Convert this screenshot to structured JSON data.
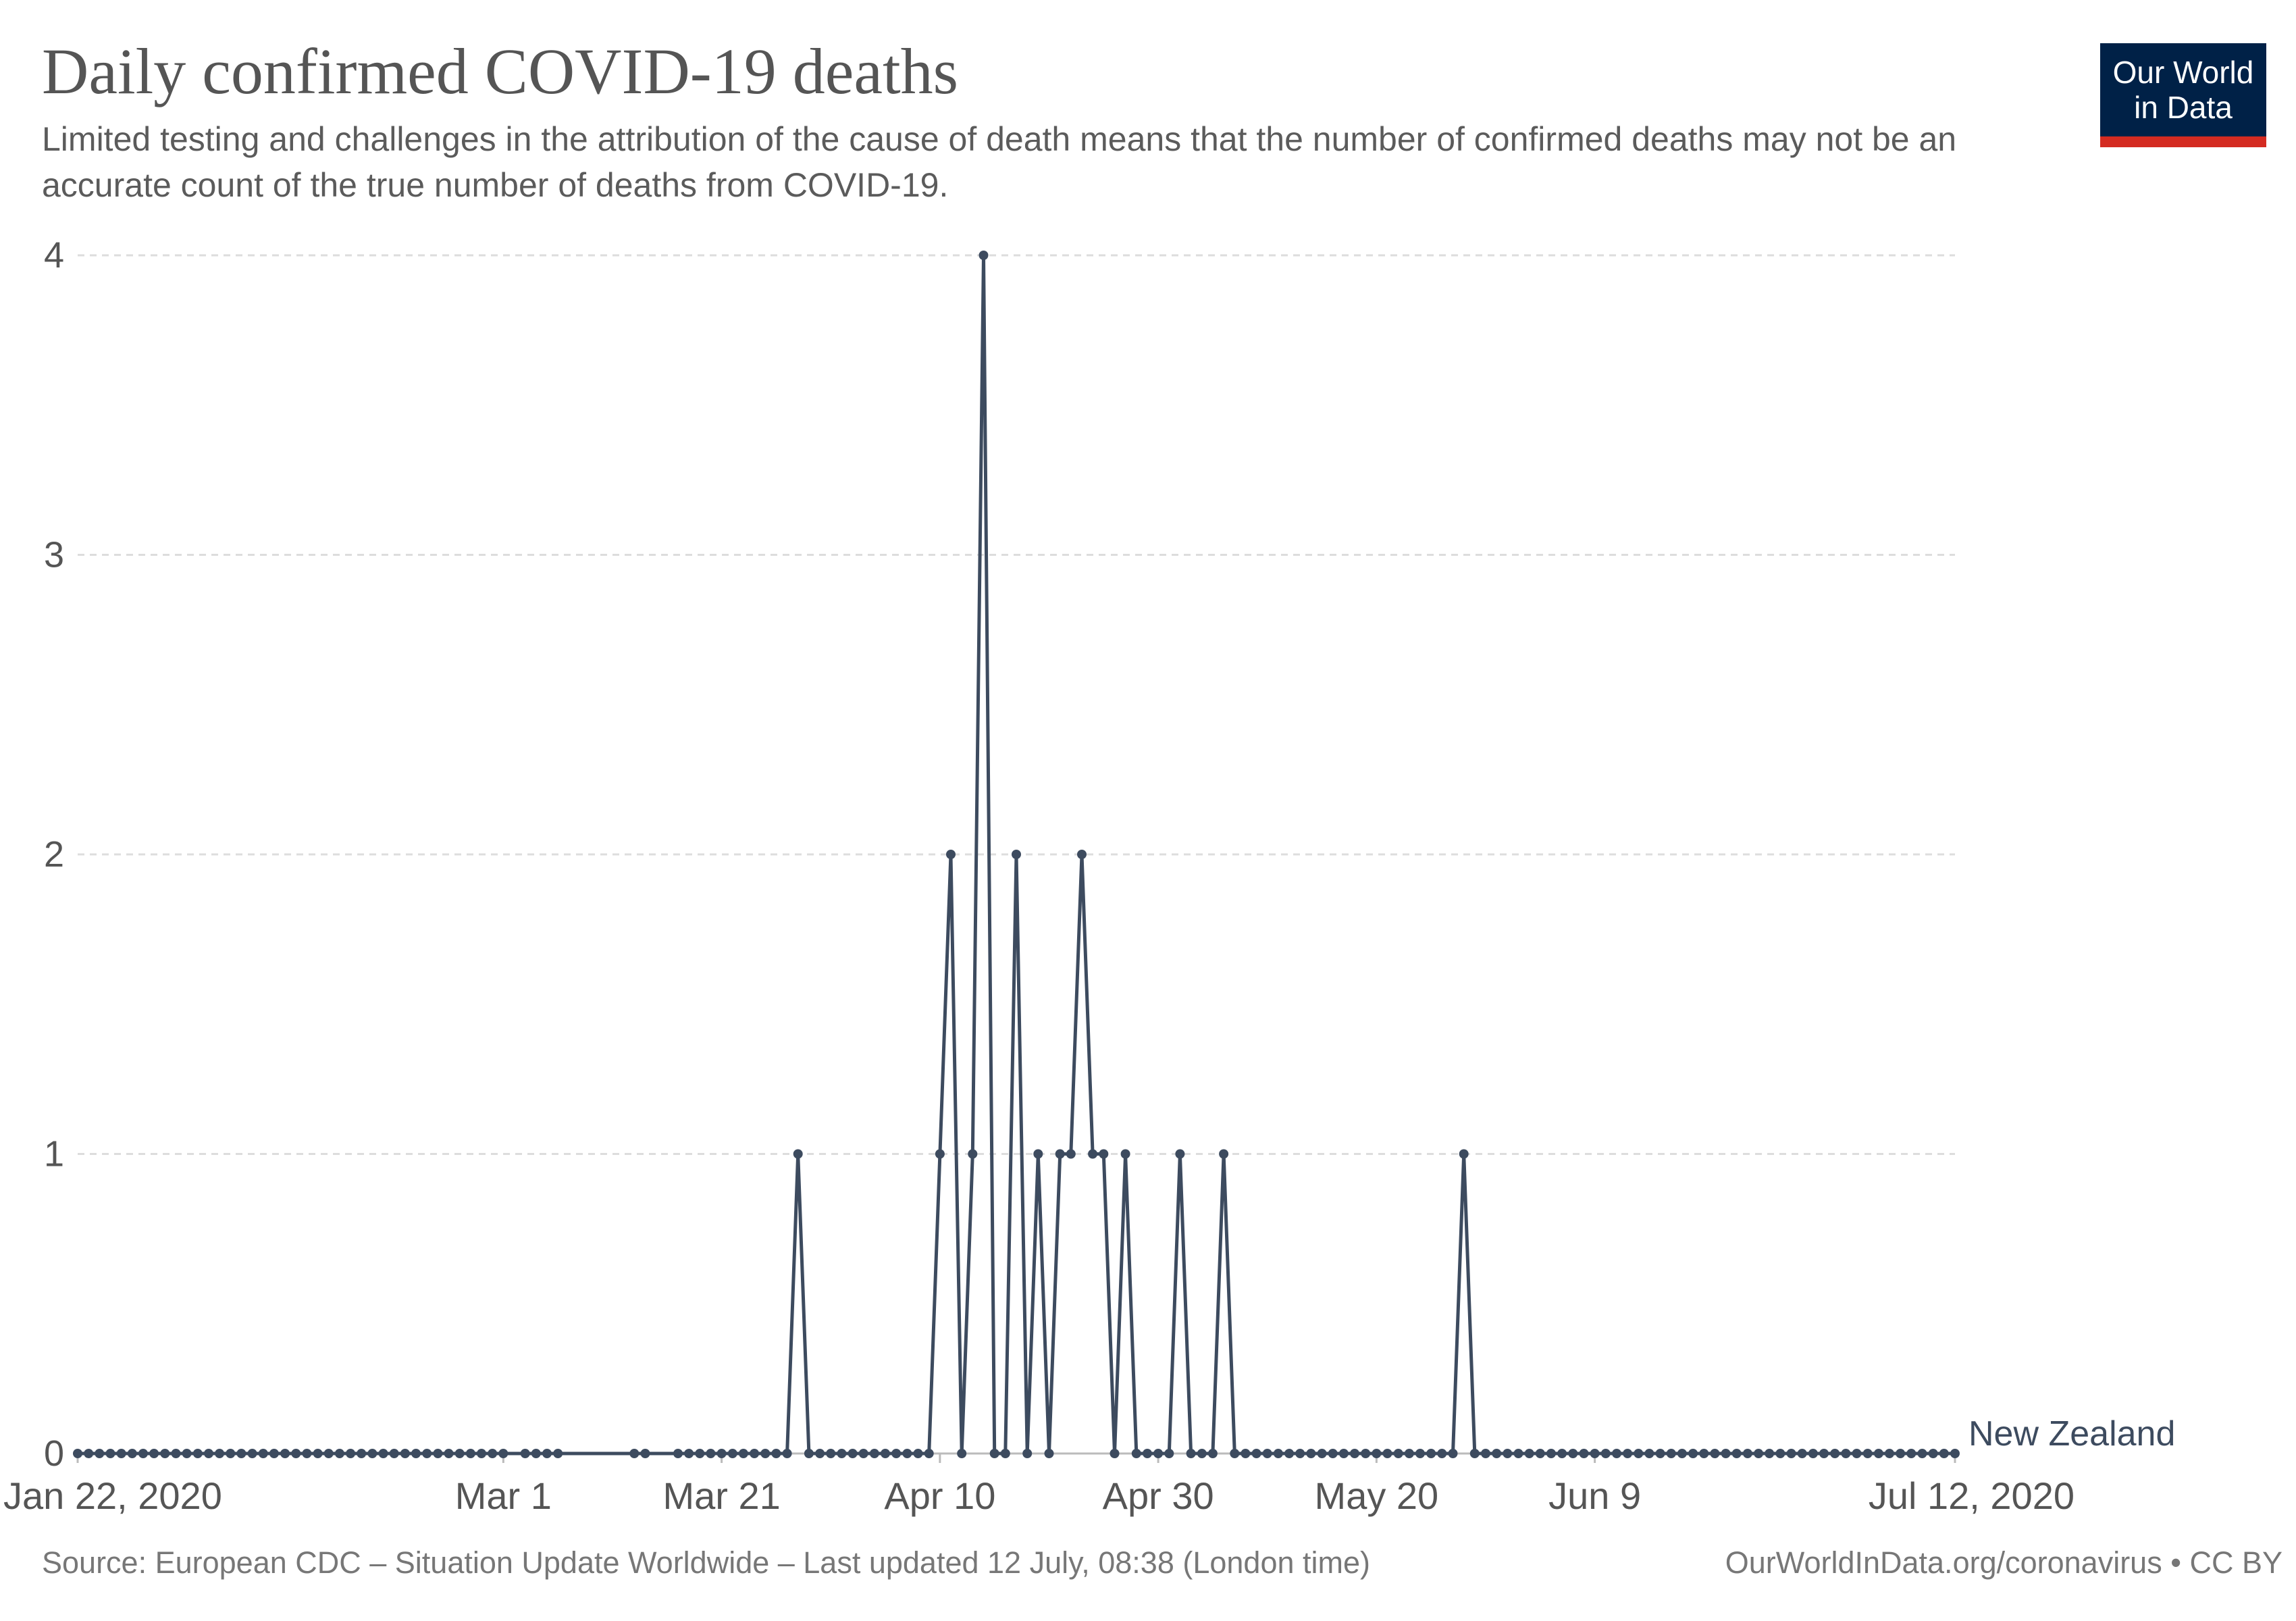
{
  "header": {
    "title": "Daily confirmed COVID-19 deaths",
    "subtitle": "Limited testing and challenges in the attribution of the cause of death means that the number of confirmed deaths may not be an accurate count of the true number of deaths from COVID-19.",
    "logo_line1": "Our World",
    "logo_line2": "in Data"
  },
  "footer": {
    "source": "Source: European CDC – Situation Update Worldwide – Last updated 12 July, 08:38 (London time)",
    "url": "OurWorldInData.org/coronavirus • CC BY"
  },
  "colors": {
    "series": "#3d4b5f",
    "grid": "#dddddd",
    "text": "#555555",
    "logo_bg": "#002147",
    "logo_accent": "#d42b21"
  },
  "chart_data": {
    "type": "line",
    "title": "Daily confirmed COVID-19 deaths",
    "xlabel": "",
    "ylabel": "",
    "x_range": [
      "2020-01-22",
      "2020-07-12"
    ],
    "ylim": [
      0,
      4
    ],
    "y_ticks": [
      0,
      1,
      2,
      3,
      4
    ],
    "y_tick_labels": [
      "0",
      "1",
      "2",
      "3",
      "4"
    ],
    "x_ticks": [
      "2020-01-22",
      "2020-03-01",
      "2020-03-21",
      "2020-04-10",
      "2020-04-30",
      "2020-05-20",
      "2020-06-09",
      "2020-07-12"
    ],
    "x_tick_labels": [
      "Jan 22, 2020",
      "Mar 1",
      "Mar 21",
      "Apr 10",
      "Apr 30",
      "May 20",
      "Jun 9",
      "Jul 12, 2020"
    ],
    "grid": "horizontal dashed",
    "legend": "end-of-line label",
    "series": [
      {
        "name": "New Zealand",
        "color": "#3d4b5f",
        "points": [
          [
            "2020-01-22",
            0
          ],
          [
            "2020-01-23",
            0
          ],
          [
            "2020-01-24",
            0
          ],
          [
            "2020-01-25",
            0
          ],
          [
            "2020-01-26",
            0
          ],
          [
            "2020-01-27",
            0
          ],
          [
            "2020-01-28",
            0
          ],
          [
            "2020-01-29",
            0
          ],
          [
            "2020-01-30",
            0
          ],
          [
            "2020-01-31",
            0
          ],
          [
            "2020-02-01",
            0
          ],
          [
            "2020-02-02",
            0
          ],
          [
            "2020-02-03",
            0
          ],
          [
            "2020-02-04",
            0
          ],
          [
            "2020-02-05",
            0
          ],
          [
            "2020-02-06",
            0
          ],
          [
            "2020-02-07",
            0
          ],
          [
            "2020-02-08",
            0
          ],
          [
            "2020-02-09",
            0
          ],
          [
            "2020-02-10",
            0
          ],
          [
            "2020-02-11",
            0
          ],
          [
            "2020-02-12",
            0
          ],
          [
            "2020-02-13",
            0
          ],
          [
            "2020-02-14",
            0
          ],
          [
            "2020-02-15",
            0
          ],
          [
            "2020-02-16",
            0
          ],
          [
            "2020-02-17",
            0
          ],
          [
            "2020-02-18",
            0
          ],
          [
            "2020-02-19",
            0
          ],
          [
            "2020-02-20",
            0
          ],
          [
            "2020-02-21",
            0
          ],
          [
            "2020-02-22",
            0
          ],
          [
            "2020-02-23",
            0
          ],
          [
            "2020-02-24",
            0
          ],
          [
            "2020-02-25",
            0
          ],
          [
            "2020-02-26",
            0
          ],
          [
            "2020-02-27",
            0
          ],
          [
            "2020-02-28",
            0
          ],
          [
            "2020-02-29",
            0
          ],
          [
            "2020-03-01",
            0
          ],
          [
            "2020-03-03",
            0
          ],
          [
            "2020-03-04",
            0
          ],
          [
            "2020-03-05",
            0
          ],
          [
            "2020-03-06",
            0
          ],
          [
            "2020-03-13",
            0
          ],
          [
            "2020-03-14",
            0
          ],
          [
            "2020-03-17",
            0
          ],
          [
            "2020-03-18",
            0
          ],
          [
            "2020-03-19",
            0
          ],
          [
            "2020-03-20",
            0
          ],
          [
            "2020-03-21",
            0
          ],
          [
            "2020-03-22",
            0
          ],
          [
            "2020-03-23",
            0
          ],
          [
            "2020-03-24",
            0
          ],
          [
            "2020-03-25",
            0
          ],
          [
            "2020-03-26",
            0
          ],
          [
            "2020-03-27",
            0
          ],
          [
            "2020-03-28",
            1
          ],
          [
            "2020-03-29",
            0
          ],
          [
            "2020-03-30",
            0
          ],
          [
            "2020-03-31",
            0
          ],
          [
            "2020-04-01",
            0
          ],
          [
            "2020-04-02",
            0
          ],
          [
            "2020-04-03",
            0
          ],
          [
            "2020-04-04",
            0
          ],
          [
            "2020-04-05",
            0
          ],
          [
            "2020-04-06",
            0
          ],
          [
            "2020-04-07",
            0
          ],
          [
            "2020-04-08",
            0
          ],
          [
            "2020-04-09",
            0
          ],
          [
            "2020-04-10",
            1
          ],
          [
            "2020-04-11",
            2
          ],
          [
            "2020-04-12",
            0
          ],
          [
            "2020-04-13",
            1
          ],
          [
            "2020-04-14",
            4
          ],
          [
            "2020-04-15",
            0
          ],
          [
            "2020-04-16",
            0
          ],
          [
            "2020-04-17",
            2
          ],
          [
            "2020-04-18",
            0
          ],
          [
            "2020-04-19",
            1
          ],
          [
            "2020-04-20",
            0
          ],
          [
            "2020-04-21",
            1
          ],
          [
            "2020-04-22",
            1
          ],
          [
            "2020-04-23",
            2
          ],
          [
            "2020-04-24",
            1
          ],
          [
            "2020-04-25",
            1
          ],
          [
            "2020-04-26",
            0
          ],
          [
            "2020-04-27",
            1
          ],
          [
            "2020-04-28",
            0
          ],
          [
            "2020-04-29",
            0
          ],
          [
            "2020-04-30",
            0
          ],
          [
            "2020-05-01",
            0
          ],
          [
            "2020-05-02",
            1
          ],
          [
            "2020-05-03",
            0
          ],
          [
            "2020-05-04",
            0
          ],
          [
            "2020-05-05",
            0
          ],
          [
            "2020-05-06",
            1
          ],
          [
            "2020-05-07",
            0
          ],
          [
            "2020-05-08",
            0
          ],
          [
            "2020-05-09",
            0
          ],
          [
            "2020-05-10",
            0
          ],
          [
            "2020-05-11",
            0
          ],
          [
            "2020-05-12",
            0
          ],
          [
            "2020-05-13",
            0
          ],
          [
            "2020-05-14",
            0
          ],
          [
            "2020-05-15",
            0
          ],
          [
            "2020-05-16",
            0
          ],
          [
            "2020-05-17",
            0
          ],
          [
            "2020-05-18",
            0
          ],
          [
            "2020-05-19",
            0
          ],
          [
            "2020-05-20",
            0
          ],
          [
            "2020-05-21",
            0
          ],
          [
            "2020-05-22",
            0
          ],
          [
            "2020-05-23",
            0
          ],
          [
            "2020-05-24",
            0
          ],
          [
            "2020-05-25",
            0
          ],
          [
            "2020-05-26",
            0
          ],
          [
            "2020-05-27",
            0
          ],
          [
            "2020-05-28",
            1
          ],
          [
            "2020-05-29",
            0
          ],
          [
            "2020-05-30",
            0
          ],
          [
            "2020-05-31",
            0
          ],
          [
            "2020-06-01",
            0
          ],
          [
            "2020-06-02",
            0
          ],
          [
            "2020-06-03",
            0
          ],
          [
            "2020-06-04",
            0
          ],
          [
            "2020-06-05",
            0
          ],
          [
            "2020-06-06",
            0
          ],
          [
            "2020-06-07",
            0
          ],
          [
            "2020-06-08",
            0
          ],
          [
            "2020-06-09",
            0
          ],
          [
            "2020-06-10",
            0
          ],
          [
            "2020-06-11",
            0
          ],
          [
            "2020-06-12",
            0
          ],
          [
            "2020-06-13",
            0
          ],
          [
            "2020-06-14",
            0
          ],
          [
            "2020-06-15",
            0
          ],
          [
            "2020-06-16",
            0
          ],
          [
            "2020-06-17",
            0
          ],
          [
            "2020-06-18",
            0
          ],
          [
            "2020-06-19",
            0
          ],
          [
            "2020-06-20",
            0
          ],
          [
            "2020-06-21",
            0
          ],
          [
            "2020-06-22",
            0
          ],
          [
            "2020-06-23",
            0
          ],
          [
            "2020-06-24",
            0
          ],
          [
            "2020-06-25",
            0
          ],
          [
            "2020-06-26",
            0
          ],
          [
            "2020-06-27",
            0
          ],
          [
            "2020-06-28",
            0
          ],
          [
            "2020-06-29",
            0
          ],
          [
            "2020-06-30",
            0
          ],
          [
            "2020-07-01",
            0
          ],
          [
            "2020-07-02",
            0
          ],
          [
            "2020-07-03",
            0
          ],
          [
            "2020-07-04",
            0
          ],
          [
            "2020-07-05",
            0
          ],
          [
            "2020-07-06",
            0
          ],
          [
            "2020-07-07",
            0
          ],
          [
            "2020-07-08",
            0
          ],
          [
            "2020-07-09",
            0
          ],
          [
            "2020-07-10",
            0
          ],
          [
            "2020-07-11",
            0
          ],
          [
            "2020-07-12",
            0
          ]
        ]
      }
    ]
  }
}
